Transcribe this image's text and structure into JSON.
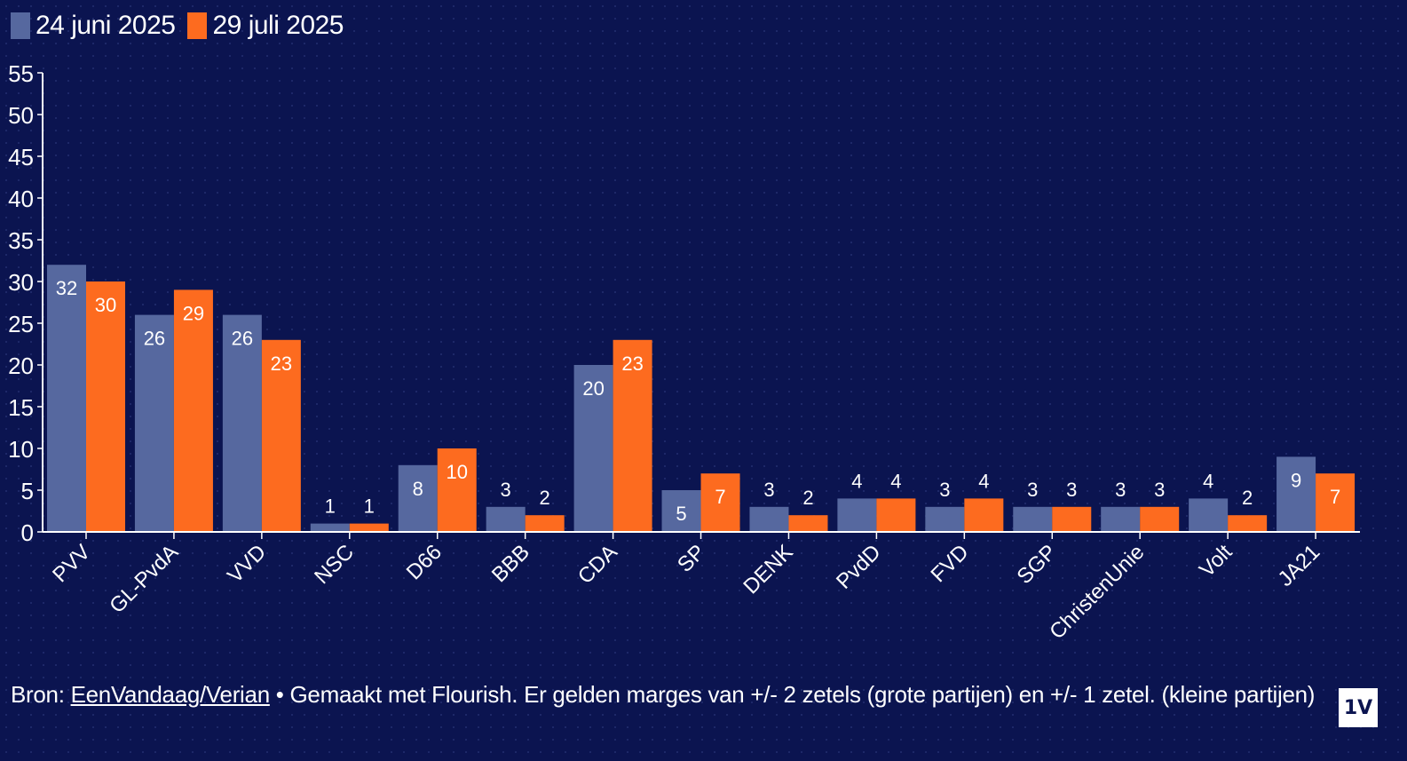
{
  "legend": {
    "series_a": "24 juni 2025",
    "series_b": "29 juli 2025"
  },
  "colors": {
    "series_a": "#56689f",
    "series_b": "#fd6b1f",
    "background": "#0b1450"
  },
  "chart_data": {
    "type": "bar",
    "title": "",
    "xlabel": "",
    "ylabel": "",
    "ylim": [
      0,
      55
    ],
    "yticks": [
      0,
      5,
      10,
      15,
      20,
      25,
      30,
      35,
      40,
      45,
      50,
      55
    ],
    "grid": false,
    "legend_position": "top-left",
    "categories": [
      "PVV",
      "GL-PvdA",
      "VVD",
      "NSC",
      "D66",
      "BBB",
      "CDA",
      "SP",
      "DENK",
      "PvdD",
      "FVD",
      "SGP",
      "ChristenUnie",
      "Volt",
      "JA21"
    ],
    "series": [
      {
        "name": "24 juni 2025",
        "values": [
          32,
          26,
          26,
          1,
          8,
          3,
          20,
          5,
          3,
          4,
          3,
          3,
          3,
          4,
          9
        ]
      },
      {
        "name": "29 juli 2025",
        "values": [
          30,
          29,
          23,
          1,
          10,
          2,
          23,
          7,
          2,
          4,
          4,
          3,
          3,
          2,
          7
        ]
      }
    ]
  },
  "footer": {
    "prefix": "Bron: ",
    "link": "EenVandaag/Verian",
    "text": " • Gemaakt met Flourish. Er gelden marges van +/- 2 zetels (grote partijen) en +/- 1 zetel. (kleine partijen)"
  },
  "logo": {
    "text": "1V"
  }
}
